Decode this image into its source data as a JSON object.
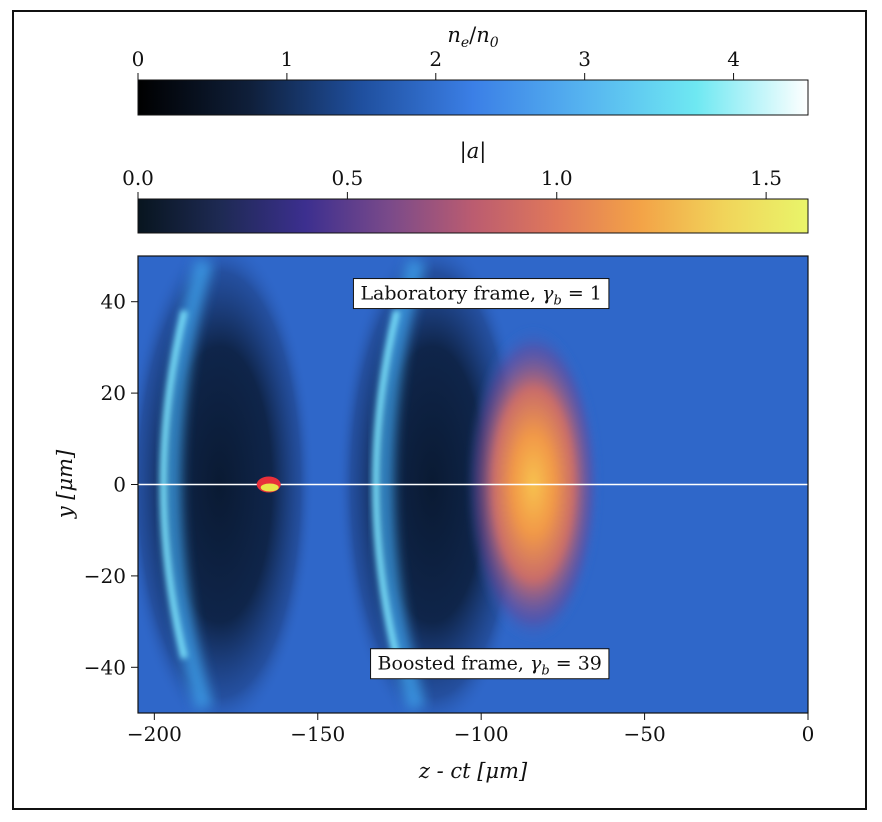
{
  "chart_data": [
    {
      "type": "colorbar",
      "label": "n_e/n_0",
      "label_parts": {
        "main": "n",
        "sub1": "e",
        "slash": "/",
        "main2": "n",
        "sub2": "0"
      },
      "range": [
        0,
        4.5
      ],
      "ticks": [
        0,
        1,
        2,
        3,
        4
      ],
      "tick_labels": [
        "0",
        "1",
        "2",
        "3",
        "4"
      ],
      "colormap_stops": [
        "#000000",
        "#0f1f3a",
        "#1f4f9e",
        "#3b7fe6",
        "#56b4f0",
        "#6ee8f2",
        "#ffffff"
      ]
    },
    {
      "type": "colorbar",
      "label": "|a|",
      "range": [
        0,
        1.6
      ],
      "ticks": [
        0.0,
        0.5,
        1.0,
        1.5
      ],
      "tick_labels": [
        "0.0",
        "0.5",
        "1.0",
        "1.5"
      ],
      "colormap_stops": [
        "#08151f",
        "#1e2a54",
        "#3c2f8f",
        "#7a4a8a",
        "#bb5c70",
        "#e0785a",
        "#f3a347",
        "#f1d45a",
        "#e9f56a"
      ]
    },
    {
      "type": "heatmap",
      "xlabel": "z - ct [μm]",
      "ylabel": "y [μm]",
      "xlim": [
        -205,
        0
      ],
      "ylim": [
        -50,
        50
      ],
      "xticks": [
        -200,
        -150,
        -100,
        -50,
        0
      ],
      "xtick_labels": [
        "−200",
        "−150",
        "−100",
        "−50",
        "0"
      ],
      "yticks": [
        40,
        20,
        0,
        -20,
        -40
      ],
      "ytick_labels": [
        "40",
        "20",
        "0",
        "−20",
        "−40"
      ],
      "background_color": "#2f67c9",
      "center_line_y": 0,
      "annotations": [
        {
          "text": "Laboratory frame, γ_b = 1",
          "main": "Laboratory frame, ",
          "sym": "γ",
          "sub": "b",
          "rest": " = 1",
          "x": -60,
          "y": 42
        },
        {
          "text": "Boosted frame, γ_b = 39",
          "main": "Boosted frame, ",
          "sym": "γ",
          "sub": "b",
          "rest": " = 39",
          "x": -60,
          "y": -39
        }
      ],
      "features": [
        {
          "kind": "wake_arc",
          "z_vertex": -203,
          "color": "#7fe8ff"
        },
        {
          "kind": "wake_arc",
          "z_vertex": -138,
          "color": "#7fe8ff"
        },
        {
          "kind": "laser_pulse",
          "z_center": -84,
          "y_halfwidth": 30,
          "z_halfwidth": 15
        },
        {
          "kind": "electron_bunch",
          "z_center": -165,
          "y_center": 0
        }
      ]
    }
  ]
}
